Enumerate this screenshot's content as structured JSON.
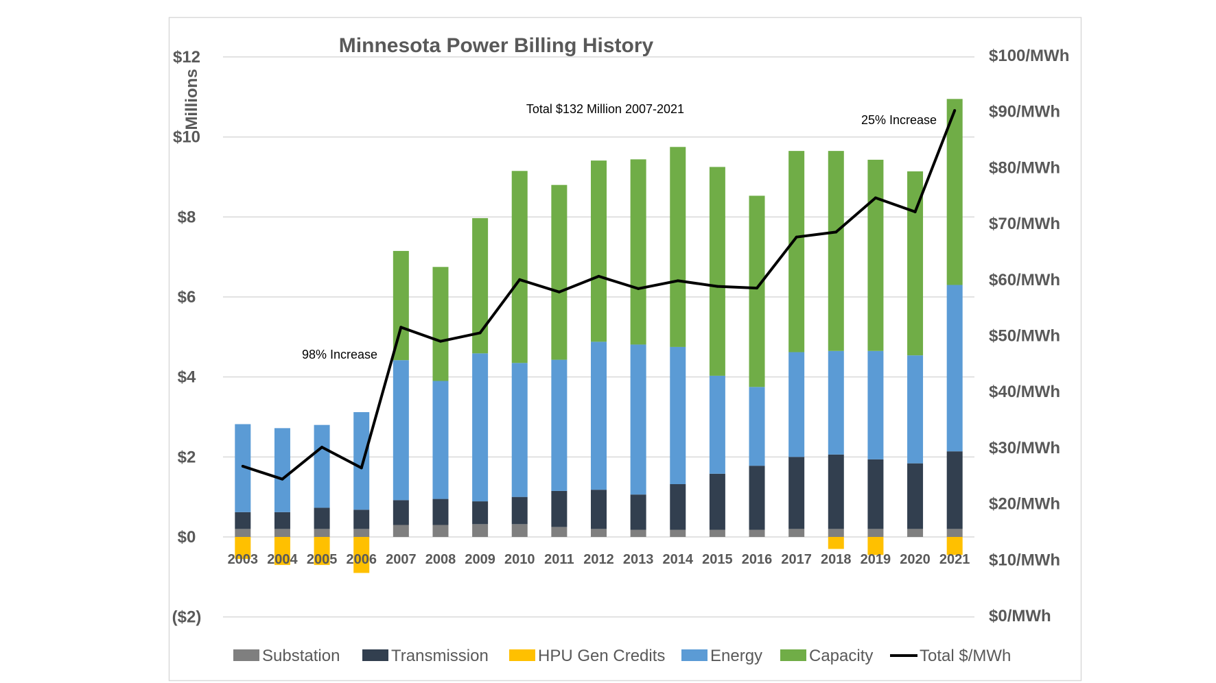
{
  "chart_data": {
    "type": "bar",
    "stacked": true,
    "title": "Minnesota Power Billing History",
    "ylabel": "Millions",
    "ylim": [
      -2,
      12
    ],
    "yticks": [
      -2,
      0,
      2,
      4,
      6,
      8,
      10,
      12
    ],
    "ytick_labels": [
      "($2)",
      "$0",
      "$2",
      "$4",
      "$6",
      "$8",
      "$10",
      "$12"
    ],
    "y2lim": [
      0,
      100
    ],
    "y2ticks": [
      0,
      10,
      20,
      30,
      40,
      50,
      60,
      70,
      80,
      90,
      100
    ],
    "y2tick_labels": [
      "$0/MWh",
      "$10/MWh",
      "$20/MWh",
      "$30/MWh",
      "$40/MWh",
      "$50/MWh",
      "$60/MWh",
      "$70/MWh",
      "$80/MWh",
      "$90/MWh",
      "$100/MWh"
    ],
    "categories": [
      "2003",
      "2004",
      "2005",
      "2006",
      "2007",
      "2008",
      "2009",
      "2010",
      "2011",
      "2012",
      "2013",
      "2014",
      "2015",
      "2016",
      "2017",
      "2018",
      "2019",
      "2020",
      "2021"
    ],
    "series": [
      {
        "name": "Substation",
        "color": "#7f7f7f",
        "axis": "left",
        "values": [
          0.2,
          0.2,
          0.2,
          0.2,
          0.3,
          0.3,
          0.32,
          0.32,
          0.25,
          0.2,
          0.18,
          0.18,
          0.18,
          0.18,
          0.2,
          0.2,
          0.2,
          0.2,
          0.2
        ]
      },
      {
        "name": "Transmission",
        "color": "#323f4f",
        "axis": "left",
        "values": [
          0.42,
          0.42,
          0.53,
          0.48,
          0.62,
          0.65,
          0.57,
          0.68,
          0.9,
          0.98,
          0.88,
          1.14,
          1.4,
          1.6,
          1.8,
          1.86,
          1.74,
          1.64,
          1.94
        ]
      },
      {
        "name": "HPU Gen Credits",
        "color": "#ffc000",
        "axis": "left",
        "values": [
          -0.55,
          -0.7,
          -0.7,
          -0.9,
          0,
          0,
          0,
          0,
          0,
          0,
          0,
          0,
          0,
          0,
          0,
          -0.3,
          -0.45,
          0,
          -0.45
        ]
      },
      {
        "name": "Energy",
        "color": "#5b9bd5",
        "axis": "left",
        "values": [
          2.2,
          2.1,
          2.07,
          2.44,
          3.5,
          2.95,
          3.7,
          3.35,
          3.28,
          3.7,
          3.75,
          3.43,
          2.45,
          1.97,
          2.62,
          2.59,
          2.71,
          2.7,
          4.16
        ]
      },
      {
        "name": "Capacity",
        "color": "#70ad47",
        "axis": "left",
        "values": [
          0,
          0,
          0,
          0,
          2.73,
          2.85,
          3.38,
          4.8,
          4.37,
          4.53,
          4.63,
          5.0,
          5.22,
          4.78,
          5.03,
          5.0,
          4.78,
          4.6,
          4.65
        ]
      },
      {
        "name": "Total $/MWh",
        "color": "#000000",
        "type": "line",
        "axis": "right",
        "values": [
          26.7,
          24.4,
          30.1,
          26.4,
          51.5,
          49.0,
          50.5,
          60.0,
          57.8,
          60.6,
          58.4,
          59.8,
          58.8,
          58.5,
          67.6,
          68.5,
          74.6,
          72.1,
          90.2
        ]
      }
    ],
    "annotations": [
      "Total $132 Million 2007-2021",
      "98% Increase",
      "25% Increase"
    ],
    "legend_position": "bottom",
    "grid": true
  }
}
